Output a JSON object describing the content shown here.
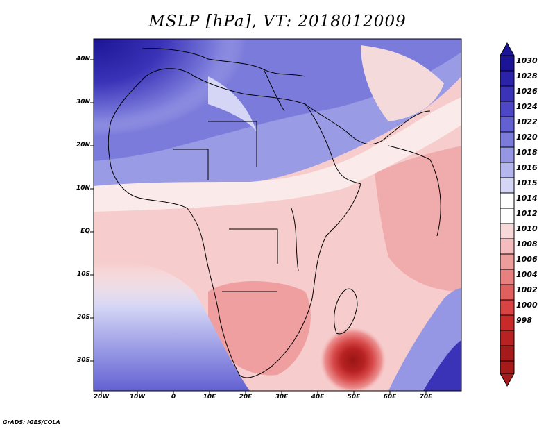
{
  "title": "MSLP [hPa], VT: 2018012009",
  "latitude_labels": [
    "40N",
    "30N",
    "20N",
    "10N",
    "EQ",
    "10S",
    "20S",
    "30S"
  ],
  "longitude_labels": [
    "20W",
    "10W",
    "0",
    "10E",
    "20E",
    "30E",
    "40E",
    "50E",
    "60E",
    "70E"
  ],
  "colorbar": {
    "levels": [
      "1030",
      "1028",
      "1026",
      "1024",
      "1022",
      "1020",
      "1018",
      "1016",
      "1015",
      "1014",
      "1012",
      "1010",
      "1008",
      "1006",
      "1004",
      "1002",
      "1000",
      "998"
    ],
    "colors": [
      "#1b1494",
      "#2a22a8",
      "#3a33b8",
      "#4d47c6",
      "#6361d2",
      "#7b7bdb",
      "#9697e4",
      "#b5b6ed",
      "#d5d6f5",
      "#ffffff",
      "#f8d9d9",
      "#f4bcbc",
      "#ee9d9d",
      "#e88080",
      "#e06060",
      "#d84343",
      "#c82a2a",
      "#a51a1a"
    ]
  },
  "footer": "GrADS: IGES/COLA"
}
